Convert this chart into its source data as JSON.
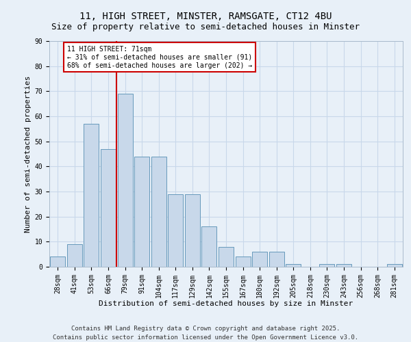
{
  "title1": "11, HIGH STREET, MINSTER, RAMSGATE, CT12 4BU",
  "title2": "Size of property relative to semi-detached houses in Minster",
  "xlabel": "Distribution of semi-detached houses by size in Minster",
  "ylabel": "Number of semi-detached properties",
  "categories": [
    "28sqm",
    "41sqm",
    "53sqm",
    "66sqm",
    "79sqm",
    "91sqm",
    "104sqm",
    "117sqm",
    "129sqm",
    "142sqm",
    "155sqm",
    "167sqm",
    "180sqm",
    "192sqm",
    "205sqm",
    "218sqm",
    "230sqm",
    "243sqm",
    "256sqm",
    "268sqm",
    "281sqm"
  ],
  "values": [
    4,
    9,
    57,
    47,
    69,
    44,
    44,
    29,
    29,
    16,
    8,
    4,
    6,
    6,
    1,
    0,
    1,
    1,
    0,
    0,
    1
  ],
  "bar_color": "#c8d8ea",
  "bar_edge_color": "#6699bb",
  "grid_color": "#c8d8ea",
  "bg_color": "#e8f0f8",
  "red_line_x": 3.5,
  "annotation_text": "11 HIGH STREET: 71sqm\n← 31% of semi-detached houses are smaller (91)\n68% of semi-detached houses are larger (202) →",
  "annotation_box_color": "#ffffff",
  "annotation_box_edge": "#cc0000",
  "red_line_color": "#cc0000",
  "ylim": [
    0,
    90
  ],
  "yticks": [
    0,
    10,
    20,
    30,
    40,
    50,
    60,
    70,
    80,
    90
  ],
  "footer": "Contains HM Land Registry data © Crown copyright and database right 2025.\nContains public sector information licensed under the Open Government Licence v3.0.",
  "title_fontsize": 10,
  "subtitle_fontsize": 9,
  "axis_fontsize": 8,
  "tick_fontsize": 7,
  "annot_fontsize": 7,
  "footer_fontsize": 6.5
}
